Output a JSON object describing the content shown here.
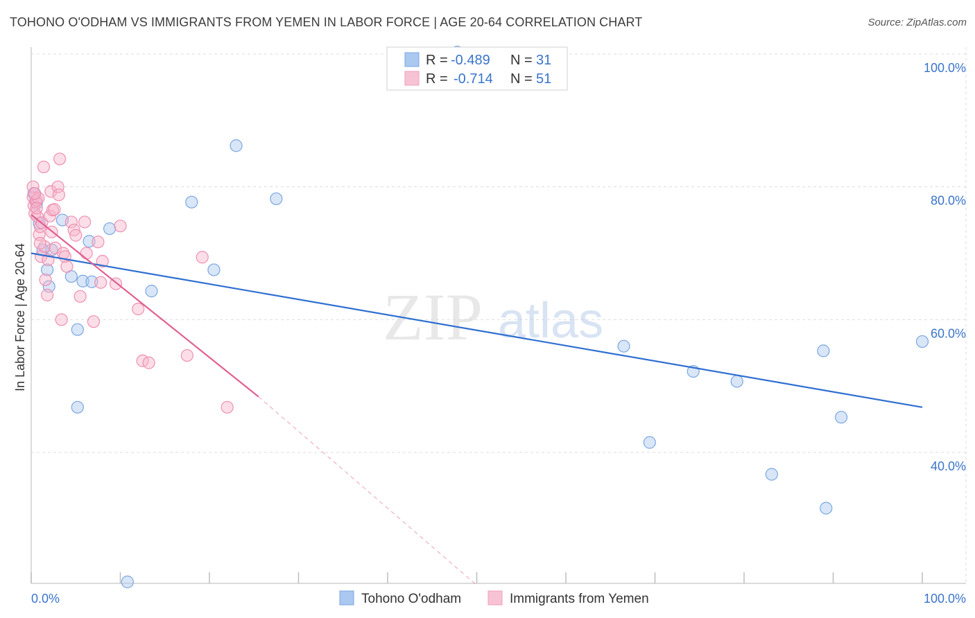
{
  "title": "TOHONO O'ODHAM VS IMMIGRANTS FROM YEMEN IN LABOR FORCE | AGE 20-64 CORRELATION CHART",
  "source": "Source: ZipAtlas.com",
  "watermark": {
    "zip": "ZIP",
    "atlas": "atlas"
  },
  "colors": {
    "blue_fill": "#aac8f0",
    "blue_stroke": "#7aa6e0",
    "blue_line": "#2f6fd0",
    "pink_fill": "#f7b6cb",
    "pink_stroke": "#ee8fb0",
    "pink_line": "#e06090",
    "axis_label": "#3a74c9",
    "grid": "#dddddd"
  },
  "legend": {
    "rows": [
      {
        "r_label": "R = ",
        "r_value": "-0.489",
        "n_label": "N = ",
        "n_value": "31"
      },
      {
        "r_label": "R = ",
        "r_value": "-0.714",
        "n_label": "N = ",
        "n_value": "51"
      }
    ]
  },
  "bottom_legend": [
    "Tohono O'odham",
    "Immigrants from Yemen"
  ],
  "chart_data": {
    "type": "scatter",
    "title": "TOHONO O'ODHAM VS IMMIGRANTS FROM YEMEN IN LABOR FORCE | AGE 20-64 CORRELATION CHART",
    "xlabel": "",
    "ylabel": "In Labor Force | Age 20-64",
    "xlim": [
      0,
      100
    ],
    "ylim": [
      20,
      101
    ],
    "x_tick_labels": [
      "0.0%",
      "100.0%"
    ],
    "y_ticks": [
      40,
      60,
      80,
      100
    ],
    "y_tick_labels": [
      "40.0%",
      "60.0%",
      "80.0%",
      "100.0%"
    ],
    "grid": true,
    "series": [
      {
        "name": "Tohono O'odham",
        "color": "blue",
        "r": -0.489,
        "n": 31,
        "points": [
          [
            0.3,
            79.0
          ],
          [
            0.6,
            77.5
          ],
          [
            0.9,
            74.5
          ],
          [
            1.3,
            70.5
          ],
          [
            1.8,
            67.5
          ],
          [
            2.0,
            65.0
          ],
          [
            2.3,
            70.5
          ],
          [
            3.5,
            75.0
          ],
          [
            4.5,
            66.5
          ],
          [
            5.2,
            58.5
          ],
          [
            5.2,
            46.8
          ],
          [
            5.8,
            65.8
          ],
          [
            6.5,
            71.8
          ],
          [
            6.8,
            65.7
          ],
          [
            8.8,
            73.7
          ],
          [
            10.8,
            20.5
          ],
          [
            13.5,
            64.3
          ],
          [
            18.0,
            77.7
          ],
          [
            20.5,
            67.5
          ],
          [
            23.0,
            86.2
          ],
          [
            27.5,
            78.2
          ],
          [
            47.8,
            100.3
          ],
          [
            66.5,
            56.0
          ],
          [
            69.4,
            41.5
          ],
          [
            74.3,
            52.2
          ],
          [
            79.2,
            50.7
          ],
          [
            83.1,
            36.7
          ],
          [
            88.9,
            55.3
          ],
          [
            89.2,
            31.6
          ],
          [
            90.9,
            45.3
          ],
          [
            100.0,
            56.7
          ]
        ],
        "trend": {
          "x": [
            0,
            100
          ],
          "y": [
            70.0,
            46.8
          ]
        }
      },
      {
        "name": "Immigrants from Yemen",
        "color": "pink",
        "r": -0.714,
        "n": 51,
        "points": [
          [
            0.2,
            78.5
          ],
          [
            0.3,
            77.2
          ],
          [
            0.4,
            76.0
          ],
          [
            0.5,
            77.8
          ],
          [
            0.6,
            78.0
          ],
          [
            0.7,
            75.5
          ],
          [
            0.8,
            78.3
          ],
          [
            0.9,
            72.8
          ],
          [
            1.0,
            74.0
          ],
          [
            1.1,
            69.5
          ],
          [
            1.2,
            74.6
          ],
          [
            1.4,
            83.0
          ],
          [
            1.5,
            71.0
          ],
          [
            1.6,
            66.0
          ],
          [
            1.8,
            63.7
          ],
          [
            1.9,
            69.0
          ],
          [
            2.1,
            75.6
          ],
          [
            2.2,
            79.3
          ],
          [
            2.3,
            73.2
          ],
          [
            2.4,
            76.5
          ],
          [
            2.6,
            76.6
          ],
          [
            2.7,
            70.8
          ],
          [
            3.0,
            80.0
          ],
          [
            3.1,
            78.8
          ],
          [
            3.2,
            84.2
          ],
          [
            3.4,
            60.0
          ],
          [
            3.6,
            70.0
          ],
          [
            3.8,
            69.5
          ],
          [
            4.0,
            68.0
          ],
          [
            4.5,
            74.7
          ],
          [
            4.8,
            73.5
          ],
          [
            5.0,
            72.7
          ],
          [
            5.5,
            63.5
          ],
          [
            6.0,
            74.7
          ],
          [
            6.2,
            70.0
          ],
          [
            7.0,
            59.7
          ],
          [
            7.5,
            71.7
          ],
          [
            7.8,
            65.6
          ],
          [
            8.0,
            68.8
          ],
          [
            9.5,
            65.4
          ],
          [
            10.0,
            74.1
          ],
          [
            12.0,
            61.6
          ],
          [
            12.5,
            53.8
          ],
          [
            13.2,
            53.5
          ],
          [
            17.5,
            54.6
          ],
          [
            19.2,
            69.4
          ],
          [
            22.0,
            46.8
          ],
          [
            0.2,
            80.0
          ],
          [
            0.4,
            79.0
          ],
          [
            1.0,
            71.5
          ],
          [
            0.6,
            76.8
          ]
        ],
        "trend": {
          "x": [
            0,
            25.5
          ],
          "y": [
            75.8,
            48.4
          ]
        },
        "trend_extension": {
          "x": [
            25.5,
            50
          ],
          "y": [
            48.4,
            20.0
          ]
        }
      }
    ]
  }
}
